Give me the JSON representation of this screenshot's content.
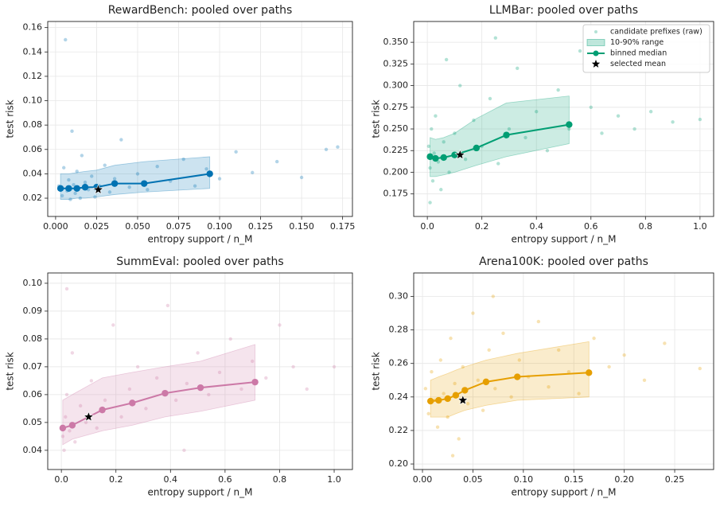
{
  "chart_data": [
    {
      "type": "scatter",
      "title": "RewardBench: pooled over paths",
      "x_label": "entropy support / n_M",
      "y_label": "test risk",
      "color": "#0072b2",
      "grid": true,
      "xlim": [
        -0.0048,
        0.181
      ],
      "ylim": [
        0.005,
        0.165
      ],
      "xticks": [
        {
          "value": 0,
          "label": "0.000"
        },
        0.025,
        {
          "value": 0.05,
          "label": "0.050"
        },
        0.075,
        {
          "value": 0.1,
          "label": "0.100"
        },
        0.125,
        {
          "value": 0.15,
          "label": "0.150"
        },
        0.175
      ],
      "yticks": [
        0.02,
        0.04,
        0.06,
        0.08,
        {
          "value": 0.1,
          "label": "0.10"
        },
        0.12,
        0.14,
        0.16
      ],
      "points": {
        "x": [
          0.002,
          0.004,
          0.005,
          0.006,
          0.007,
          0.008,
          0.009,
          0.01,
          0.011,
          0.012,
          0.013,
          0.014,
          0.015,
          0.016,
          0.018,
          0.02,
          0.022,
          0.024,
          0.027,
          0.03,
          0.033,
          0.036,
          0.04,
          0.045,
          0.05,
          0.056,
          0.062,
          0.07,
          0.078,
          0.085,
          0.092,
          0.1,
          0.11,
          0.12,
          0.135,
          0.15,
          0.165,
          0.172
        ],
        "y": [
          0.03,
          0.022,
          0.045,
          0.15,
          0.026,
          0.035,
          0.019,
          0.075,
          0.031,
          0.024,
          0.042,
          0.028,
          0.02,
          0.055,
          0.033,
          0.027,
          0.038,
          0.021,
          0.03,
          0.047,
          0.025,
          0.036,
          0.068,
          0.029,
          0.04,
          0.027,
          0.046,
          0.034,
          0.052,
          0.03,
          0.044,
          0.036,
          0.058,
          0.041,
          0.05,
          0.037,
          0.06,
          0.062
        ]
      },
      "band": {
        "x": [
          0.003,
          0.008,
          0.013,
          0.018,
          0.025,
          0.036,
          0.054,
          0.094
        ],
        "lower": [
          0.019,
          0.019,
          0.02,
          0.02,
          0.021,
          0.023,
          0.025,
          0.028
        ],
        "upper": [
          0.04,
          0.04,
          0.041,
          0.042,
          0.043,
          0.047,
          0.05,
          0.054
        ]
      },
      "median": {
        "x": [
          0.003,
          0.008,
          0.013,
          0.018,
          0.025,
          0.036,
          0.054,
          0.094
        ],
        "y": [
          0.028,
          0.028,
          0.028,
          0.029,
          0.029,
          0.032,
          0.032,
          0.04
        ]
      },
      "selected": {
        "x": 0.026,
        "y": 0.027
      }
    },
    {
      "type": "scatter",
      "title": "LLMBar: pooled over paths",
      "x_label": "entropy support / n_M",
      "y_label": "test risk",
      "color": "#009e73",
      "grid": true,
      "xlim": [
        -0.05,
        1.05
      ],
      "ylim": [
        0.149,
        0.374
      ],
      "xticks": [
        {
          "value": 0,
          "label": "0.0"
        },
        0.2,
        0.4,
        0.6,
        0.8,
        {
          "value": 1,
          "label": "1.0"
        }
      ],
      "yticks": [
        0.175,
        {
          "value": 0.2,
          "label": "0.200"
        },
        0.225,
        {
          "value": 0.25,
          "label": "0.250"
        },
        0.275,
        {
          "value": 0.3,
          "label": "0.300"
        },
        0.325,
        {
          "value": 0.35,
          "label": "0.350"
        }
      ],
      "points": {
        "x": [
          0.005,
          0.01,
          0.015,
          0.02,
          0.025,
          0.03,
          0.04,
          0.05,
          0.06,
          0.08,
          0.1,
          0.12,
          0.14,
          0.17,
          0.2,
          0.23,
          0.26,
          0.3,
          0.33,
          0.36,
          0.4,
          0.44,
          0.48,
          0.52,
          0.56,
          0.6,
          0.64,
          0.7,
          0.76,
          0.82,
          0.9,
          1.0,
          0.01,
          0.07,
          0.25
        ],
        "y": [
          0.23,
          0.205,
          0.25,
          0.19,
          0.222,
          0.265,
          0.212,
          0.18,
          0.235,
          0.2,
          0.245,
          0.3,
          0.215,
          0.26,
          0.23,
          0.285,
          0.21,
          0.25,
          0.32,
          0.24,
          0.27,
          0.225,
          0.295,
          0.25,
          0.34,
          0.275,
          0.245,
          0.265,
          0.25,
          0.27,
          0.258,
          0.261,
          0.165,
          0.33,
          0.355
        ]
      },
      "band": {
        "x": [
          0.01,
          0.03,
          0.06,
          0.1,
          0.18,
          0.29,
          0.52
        ],
        "lower": [
          0.195,
          0.195,
          0.197,
          0.2,
          0.208,
          0.218,
          0.233
        ],
        "upper": [
          0.24,
          0.238,
          0.24,
          0.245,
          0.262,
          0.28,
          0.288
        ]
      },
      "median": {
        "x": [
          0.01,
          0.03,
          0.06,
          0.1,
          0.18,
          0.29,
          0.52
        ],
        "y": [
          0.218,
          0.216,
          0.217,
          0.22,
          0.228,
          0.243,
          0.255
        ]
      },
      "selected": {
        "x": 0.12,
        "y": 0.22
      },
      "legend": {
        "position": "upper right",
        "labels": [
          "candidate prefixes (raw)",
          "10-90% range",
          "binned median",
          "selected mean"
        ]
      }
    },
    {
      "type": "scatter",
      "title": "SummEval: pooled over paths",
      "x_label": "entropy support / n_M",
      "y_label": "test risk",
      "color": "#cc79a7",
      "grid": true,
      "xlim": [
        -0.05,
        1.067
      ],
      "ylim": [
        0.0331,
        0.1037
      ],
      "xticks": [
        {
          "value": 0,
          "label": "0.0"
        },
        0.2,
        0.4,
        0.6,
        0.8,
        {
          "value": 1,
          "label": "1.0"
        }
      ],
      "yticks": [
        0.04,
        0.05,
        0.06,
        0.07,
        0.08,
        0.09,
        {
          "value": 0.1,
          "label": "0.10"
        }
      ],
      "points": {
        "x": [
          0.005,
          0.01,
          0.015,
          0.02,
          0.03,
          0.04,
          0.05,
          0.07,
          0.09,
          0.11,
          0.13,
          0.16,
          0.19,
          0.22,
          0.25,
          0.28,
          0.31,
          0.35,
          0.39,
          0.42,
          0.46,
          0.5,
          0.54,
          0.58,
          0.62,
          0.66,
          0.7,
          0.75,
          0.8,
          0.85,
          0.9,
          1.0,
          0.02,
          0.45
        ],
        "y": [
          0.045,
          0.04,
          0.052,
          0.06,
          0.047,
          0.075,
          0.043,
          0.056,
          0.05,
          0.065,
          0.048,
          0.058,
          0.085,
          0.052,
          0.062,
          0.07,
          0.055,
          0.066,
          0.092,
          0.058,
          0.064,
          0.075,
          0.06,
          0.068,
          0.08,
          0.062,
          0.072,
          0.066,
          0.085,
          0.07,
          0.062,
          0.07,
          0.098,
          0.04
        ]
      },
      "band": {
        "x": [
          0.005,
          0.04,
          0.15,
          0.26,
          0.38,
          0.51,
          0.71
        ],
        "lower": [
          0.042,
          0.044,
          0.047,
          0.049,
          0.052,
          0.054,
          0.058
        ],
        "upper": [
          0.058,
          0.06,
          0.066,
          0.068,
          0.07,
          0.072,
          0.078
        ]
      },
      "median": {
        "x": [
          0.005,
          0.04,
          0.15,
          0.26,
          0.38,
          0.51,
          0.71
        ],
        "y": [
          0.048,
          0.049,
          0.0545,
          0.057,
          0.0605,
          0.0625,
          0.0645
        ]
      },
      "selected": {
        "x": 0.1,
        "y": 0.052
      }
    },
    {
      "type": "scatter",
      "title": "Arena100K: pooled over paths",
      "x_label": "entropy support / n_M",
      "y_label": "test risk",
      "color": "#e69f00",
      "grid": true,
      "xlim": [
        -0.0087,
        0.2886
      ],
      "ylim": [
        0.1967,
        0.314
      ],
      "xticks": [
        {
          "value": 0,
          "label": "0.00"
        },
        0.05,
        {
          "value": 0.1,
          "label": "0.10"
        },
        0.15,
        {
          "value": 0.2,
          "label": "0.20"
        },
        0.25
      ],
      "yticks": [
        {
          "value": 0.2,
          "label": "0.20"
        },
        0.22,
        0.24,
        0.26,
        0.28,
        {
          "value": 0.3,
          "label": "0.30"
        }
      ],
      "points": {
        "x": [
          0.003,
          0.006,
          0.009,
          0.012,
          0.015,
          0.018,
          0.021,
          0.025,
          0.028,
          0.032,
          0.036,
          0.04,
          0.045,
          0.05,
          0.055,
          0.06,
          0.066,
          0.072,
          0.08,
          0.088,
          0.096,
          0.105,
          0.115,
          0.125,
          0.135,
          0.145,
          0.155,
          0.17,
          0.185,
          0.2,
          0.22,
          0.24,
          0.275,
          0.03,
          0.07
        ],
        "y": [
          0.245,
          0.23,
          0.255,
          0.238,
          0.222,
          0.262,
          0.242,
          0.228,
          0.275,
          0.248,
          0.215,
          0.258,
          0.236,
          0.29,
          0.25,
          0.232,
          0.268,
          0.245,
          0.278,
          0.24,
          0.262,
          0.252,
          0.285,
          0.246,
          0.268,
          0.255,
          0.242,
          0.275,
          0.258,
          0.265,
          0.25,
          0.272,
          0.257,
          0.205,
          0.3
        ]
      },
      "band": {
        "x": [
          0.008,
          0.016,
          0.025,
          0.033,
          0.042,
          0.063,
          0.094,
          0.165
        ],
        "lower": [
          0.228,
          0.228,
          0.228,
          0.23,
          0.232,
          0.235,
          0.238,
          0.24
        ],
        "upper": [
          0.25,
          0.252,
          0.254,
          0.256,
          0.258,
          0.262,
          0.266,
          0.273
        ]
      },
      "median": {
        "x": [
          0.008,
          0.016,
          0.025,
          0.033,
          0.042,
          0.063,
          0.094,
          0.165
        ],
        "y": [
          0.2375,
          0.238,
          0.239,
          0.241,
          0.244,
          0.249,
          0.252,
          0.2545
        ]
      },
      "selected": {
        "x": 0.04,
        "y": 0.238
      }
    }
  ]
}
